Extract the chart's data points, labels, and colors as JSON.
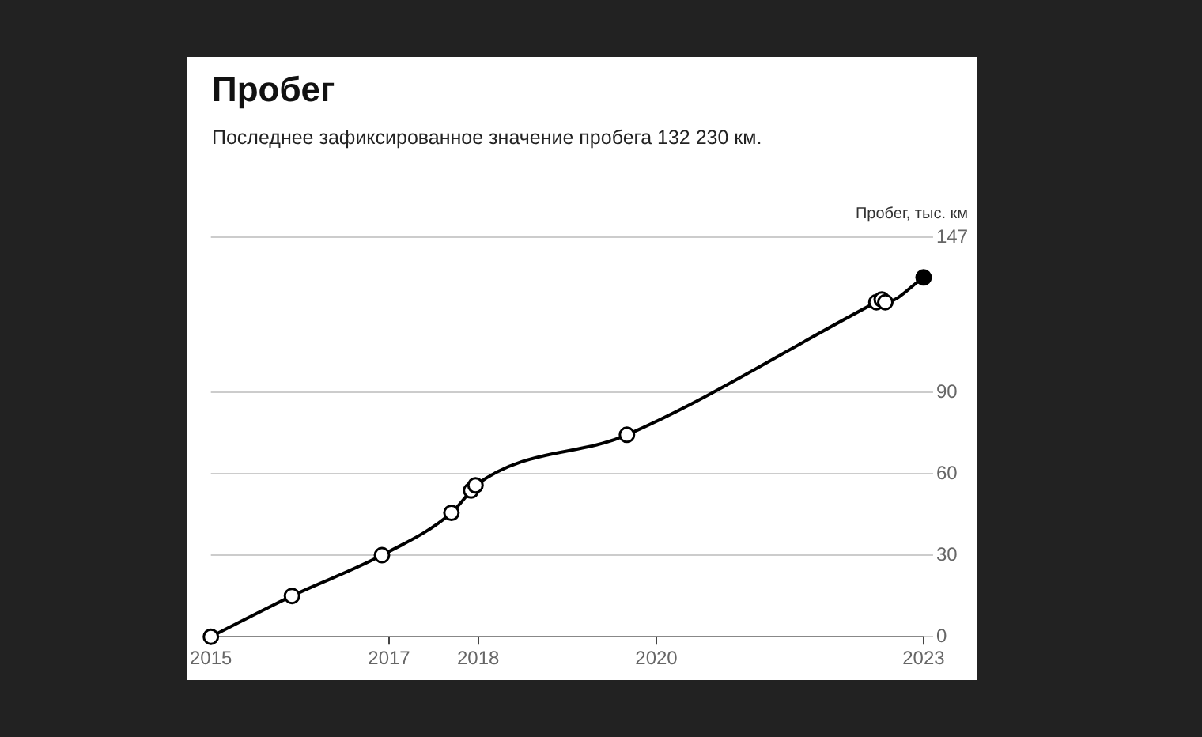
{
  "chart_data": {
    "type": "line",
    "title": "Пробег",
    "subtitle": "Последнее зафиксированное значение пробега 132 230 км.",
    "ylabel": "Пробег, тыс. км",
    "x": [
      2015.0,
      2015.91,
      2016.92,
      2017.7,
      2017.92,
      2017.97,
      2019.67,
      2022.47,
      2022.53,
      2022.57,
      2023.0
    ],
    "series": [
      {
        "color": "#000000",
        "colors": [
          "#ffffff",
          "#ffffff",
          "#ffffff",
          "#ffffff",
          "#ffffff",
          "#ffffff",
          "#ffffff",
          "#ffffff",
          "#ffffff",
          "#ffffff",
          "#000000"
        ],
        "values": [
          0,
          15,
          30,
          45.6,
          53.8,
          55.7,
          74.3,
          123.1,
          124.1,
          123.1,
          132.2
        ]
      }
    ],
    "xlim": [
      2015,
      2023
    ],
    "xticks": [
      2015,
      2017,
      2018,
      2020,
      2023
    ],
    "ylim": [
      0,
      147
    ],
    "yticks": [
      0,
      30,
      60,
      90,
      147
    ],
    "grid": "y",
    "legend": false,
    "marker": "circle",
    "line_style": "solid"
  }
}
